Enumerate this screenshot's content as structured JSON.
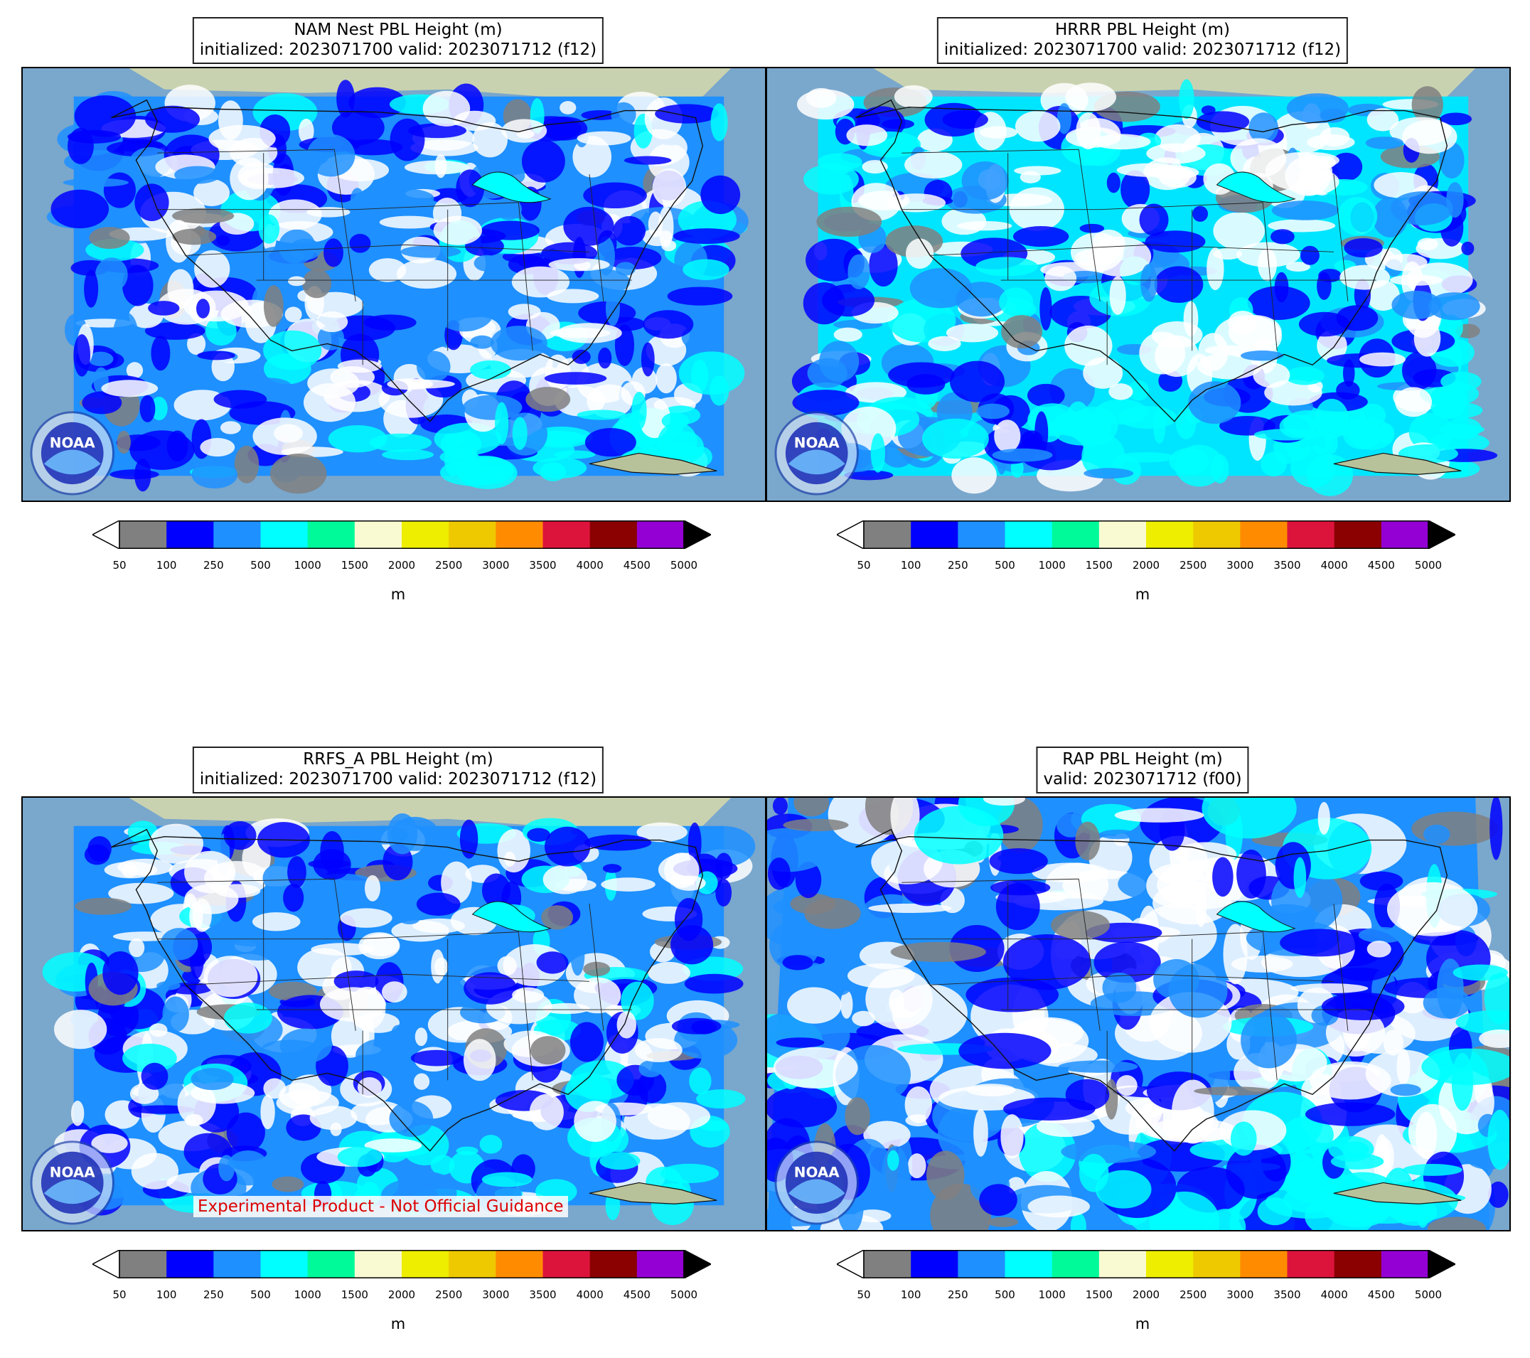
{
  "panels": [
    {
      "title_line1": "NAM Nest PBL Height (m)",
      "title_line2": "initialized: 2023071700 valid: 2023071712 (f12)"
    },
    {
      "title_line1": "HRRR PBL Height (m)",
      "title_line2": "initialized: 2023071700 valid: 2023071712 (f12)"
    },
    {
      "title_line1": "RRFS_A PBL Height (m)",
      "title_line2": "initialized: 2023071700 valid: 2023071712 (f12)",
      "note": "Experimental Product - Not Official Guidance"
    },
    {
      "title_line1": "RAP PBL Height (m)",
      "title_line2": "valid: 2023071712 (f00)"
    }
  ],
  "colorbar": {
    "ticks": [
      "50",
      "100",
      "250",
      "500",
      "1000",
      "1500",
      "2000",
      "2500",
      "3000",
      "3500",
      "4000",
      "4500",
      "5000"
    ],
    "colors": [
      "#808080",
      "#0000ff",
      "#1e90ff",
      "#00ffff",
      "#00fa9a",
      "#fafad2",
      "#eeee00",
      "#eec900",
      "#ff8c00",
      "#dc143c",
      "#8b0000",
      "#9400d3"
    ],
    "under_color": "#ffffff",
    "over_color": "#000000",
    "unit": "m"
  },
  "logo": {
    "text": "NOAA",
    "icon": "noaa-logo-icon"
  }
}
